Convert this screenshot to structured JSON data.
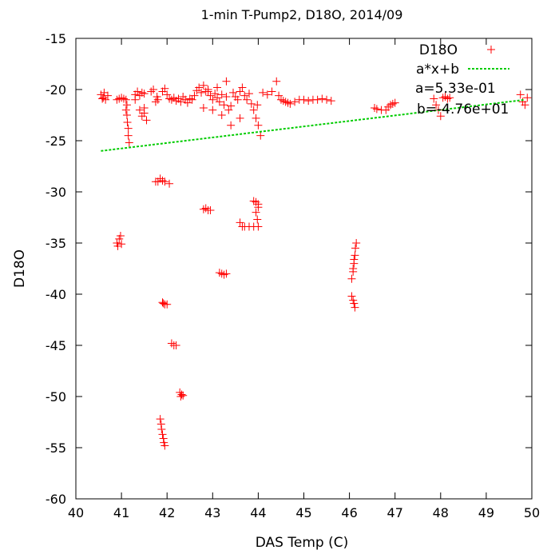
{
  "chart_data": {
    "type": "scatter",
    "title": "1-min T-Pump2, D18O, 2014/09",
    "xlabel": "DAS Temp (C)",
    "ylabel": "D18O",
    "xlim": [
      40,
      50
    ],
    "ylim": [
      -60,
      -15
    ],
    "xticks": [
      "40",
      "41",
      "42",
      "43",
      "44",
      "45",
      "46",
      "47",
      "48",
      "49",
      "50"
    ],
    "yticks": [
      "-60",
      "-55",
      "-50",
      "-45",
      "-40",
      "-35",
      "-30",
      "-25",
      "-20",
      "-15"
    ],
    "grid": false,
    "legend_position": "top-right",
    "series": [
      {
        "name": "D18O",
        "kind": "points",
        "marker": "plus",
        "color": "#ff0000",
        "points": [
          [
            40.55,
            -20.5
          ],
          [
            40.6,
            -20.8
          ],
          [
            40.62,
            -20.3
          ],
          [
            40.65,
            -21.0
          ],
          [
            40.7,
            -20.6
          ],
          [
            40.58,
            -20.9
          ],
          [
            40.9,
            -21.0
          ],
          [
            40.95,
            -20.9
          ],
          [
            41.0,
            -20.8
          ],
          [
            41.05,
            -20.9
          ],
          [
            41.1,
            -21.0
          ],
          [
            41.1,
            -22.0
          ],
          [
            41.12,
            -22.5
          ],
          [
            41.13,
            -23.2
          ],
          [
            41.15,
            -23.8
          ],
          [
            41.15,
            -24.5
          ],
          [
            41.17,
            -25.2
          ],
          [
            41.12,
            -21.5
          ],
          [
            41.3,
            -20.5
          ],
          [
            41.35,
            -20.2
          ],
          [
            41.4,
            -20.6
          ],
          [
            41.45,
            -20.3
          ],
          [
            41.3,
            -21.0
          ],
          [
            41.5,
            -20.4
          ],
          [
            41.4,
            -22.0
          ],
          [
            41.45,
            -22.6
          ],
          [
            41.5,
            -22.3
          ],
          [
            41.55,
            -23.0
          ],
          [
            41.5,
            -21.8
          ],
          [
            41.65,
            -20.2
          ],
          [
            41.7,
            -20.0
          ],
          [
            41.75,
            -21.2
          ],
          [
            41.8,
            -21.0
          ],
          [
            41.78,
            -20.7
          ],
          [
            41.9,
            -20.2
          ],
          [
            41.95,
            -19.9
          ],
          [
            42.0,
            -20.5
          ],
          [
            42.05,
            -20.9
          ],
          [
            42.1,
            -21.0
          ],
          [
            42.15,
            -20.8
          ],
          [
            42.2,
            -21.1
          ],
          [
            42.25,
            -20.9
          ],
          [
            42.3,
            -21.2
          ],
          [
            42.35,
            -20.7
          ],
          [
            42.4,
            -21.0
          ],
          [
            42.45,
            -21.3
          ],
          [
            42.5,
            -20.9
          ],
          [
            42.55,
            -21.0
          ],
          [
            42.6,
            -20.6
          ],
          [
            42.65,
            -20.1
          ],
          [
            42.7,
            -19.8
          ],
          [
            42.75,
            -20.3
          ],
          [
            42.8,
            -19.6
          ],
          [
            42.85,
            -20.2
          ],
          [
            42.9,
            -20.0
          ],
          [
            42.95,
            -20.6
          ],
          [
            43.0,
            -21.0
          ],
          [
            43.05,
            -20.4
          ],
          [
            43.1,
            -20.8
          ],
          [
            43.15,
            -21.2
          ],
          [
            43.2,
            -20.5
          ],
          [
            43.25,
            -21.5
          ],
          [
            43.3,
            -20.7
          ],
          [
            43.35,
            -22.0
          ],
          [
            43.4,
            -21.6
          ],
          [
            43.45,
            -20.3
          ],
          [
            43.5,
            -20.7
          ],
          [
            43.55,
            -21.0
          ],
          [
            43.6,
            -20.2
          ],
          [
            43.65,
            -19.8
          ],
          [
            43.7,
            -20.6
          ],
          [
            43.75,
            -21.0
          ],
          [
            43.8,
            -20.4
          ],
          [
            43.85,
            -21.4
          ],
          [
            43.9,
            -22.0
          ],
          [
            43.95,
            -22.8
          ],
          [
            44.0,
            -23.5
          ],
          [
            44.05,
            -24.5
          ],
          [
            43.98,
            -21.5
          ],
          [
            44.1,
            -20.3
          ],
          [
            44.2,
            -20.5
          ],
          [
            44.3,
            -20.2
          ],
          [
            44.4,
            -19.2
          ],
          [
            44.45,
            -20.6
          ],
          [
            44.5,
            -21.0
          ],
          [
            44.55,
            -21.1
          ],
          [
            44.6,
            -21.2
          ],
          [
            44.65,
            -21.3
          ],
          [
            44.7,
            -21.4
          ],
          [
            44.8,
            -21.2
          ],
          [
            44.9,
            -21.0
          ],
          [
            45.0,
            -21.0
          ],
          [
            45.1,
            -21.1
          ],
          [
            45.2,
            -21.0
          ],
          [
            45.3,
            -21.0
          ],
          [
            45.4,
            -20.9
          ],
          [
            45.5,
            -21.0
          ],
          [
            45.6,
            -21.1
          ],
          [
            43.3,
            -19.2
          ],
          [
            43.1,
            -19.8
          ],
          [
            42.9,
            -20.2
          ],
          [
            43.2,
            -22.5
          ],
          [
            43.4,
            -23.5
          ],
          [
            43.6,
            -22.8
          ],
          [
            43.0,
            -22.0
          ],
          [
            42.8,
            -21.8
          ],
          [
            46.55,
            -21.8
          ],
          [
            46.6,
            -21.9
          ],
          [
            46.7,
            -22.0
          ],
          [
            46.8,
            -22.0
          ],
          [
            46.85,
            -21.7
          ],
          [
            46.9,
            -21.5
          ],
          [
            46.95,
            -21.4
          ],
          [
            47.0,
            -21.3
          ],
          [
            47.85,
            -20.9
          ],
          [
            47.9,
            -21.5
          ],
          [
            47.95,
            -22.0
          ],
          [
            48.0,
            -22.6
          ],
          [
            48.05,
            -20.8
          ],
          [
            48.1,
            -20.7
          ],
          [
            48.15,
            -20.9
          ],
          [
            48.2,
            -20.8
          ],
          [
            49.75,
            -20.5
          ],
          [
            49.8,
            -21.2
          ],
          [
            49.85,
            -21.5
          ],
          [
            49.9,
            -20.8
          ],
          [
            41.75,
            -29.0
          ],
          [
            41.8,
            -29.0
          ],
          [
            41.85,
            -28.7
          ],
          [
            41.9,
            -28.9
          ],
          [
            41.95,
            -29.0
          ],
          [
            42.05,
            -29.2
          ],
          [
            40.9,
            -35.0
          ],
          [
            40.95,
            -34.6
          ],
          [
            41.0,
            -35.1
          ],
          [
            40.98,
            -34.3
          ],
          [
            40.92,
            -35.3
          ],
          [
            42.8,
            -31.7
          ],
          [
            42.85,
            -31.6
          ],
          [
            42.9,
            -31.8
          ],
          [
            42.95,
            -31.8
          ],
          [
            43.6,
            -33.0
          ],
          [
            43.65,
            -33.4
          ],
          [
            43.7,
            -33.4
          ],
          [
            43.8,
            -33.4
          ],
          [
            43.9,
            -33.4
          ],
          [
            44.0,
            -33.4
          ],
          [
            43.9,
            -30.9
          ],
          [
            43.95,
            -31.0
          ],
          [
            44.0,
            -31.2
          ],
          [
            43.95,
            -32.0
          ],
          [
            43.98,
            -32.7
          ],
          [
            44.0,
            -31.5
          ],
          [
            43.15,
            -37.9
          ],
          [
            43.2,
            -38.0
          ],
          [
            43.25,
            -38.1
          ],
          [
            43.3,
            -38.0
          ],
          [
            46.05,
            -38.5
          ],
          [
            46.08,
            -37.8
          ],
          [
            46.1,
            -37.0
          ],
          [
            46.12,
            -36.2
          ],
          [
            46.13,
            -35.5
          ],
          [
            46.15,
            -35.0
          ],
          [
            46.1,
            -36.6
          ],
          [
            46.08,
            -37.5
          ],
          [
            46.05,
            -40.2
          ],
          [
            46.08,
            -40.6
          ],
          [
            46.1,
            -40.9
          ],
          [
            46.12,
            -41.3
          ],
          [
            41.9,
            -40.8
          ],
          [
            41.95,
            -41.0
          ],
          [
            42.0,
            -41.0
          ],
          [
            41.92,
            -40.9
          ],
          [
            42.1,
            -44.8
          ],
          [
            42.15,
            -45.0
          ],
          [
            42.2,
            -45.0
          ],
          [
            42.28,
            -49.6
          ],
          [
            42.32,
            -49.8
          ],
          [
            42.35,
            -49.9
          ],
          [
            42.3,
            -50.0
          ],
          [
            41.85,
            -52.2
          ],
          [
            41.87,
            -52.7
          ],
          [
            41.88,
            -53.2
          ],
          [
            41.9,
            -53.7
          ],
          [
            41.92,
            -54.1
          ],
          [
            41.93,
            -54.5
          ],
          [
            41.95,
            -54.8
          ]
        ]
      },
      {
        "name": "a*x+b",
        "kind": "line",
        "style": "dashed",
        "color": "#00cc00",
        "x": [
          40.55,
          49.85
        ],
        "y": [
          -26.0,
          -21.0
        ]
      }
    ],
    "annotations": [
      "a=5.33e-01",
      "b=-4.76e+01"
    ]
  }
}
